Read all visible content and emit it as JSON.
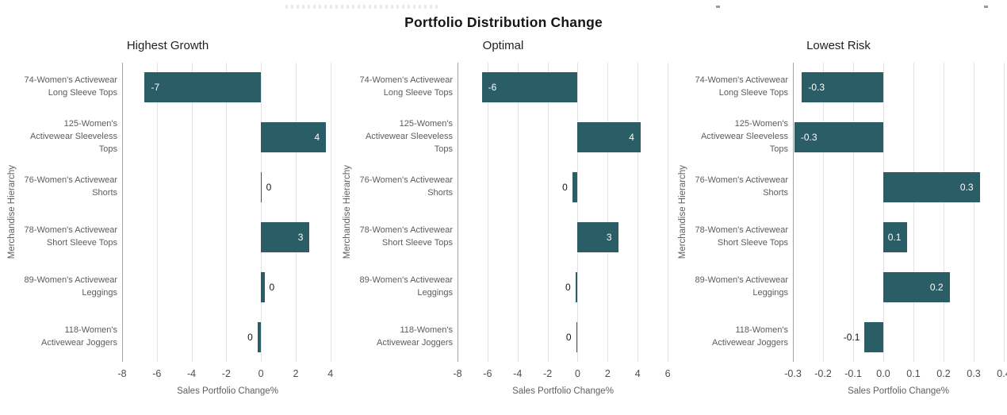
{
  "page": {
    "title": "Portfolio Distribution Change"
  },
  "colors": {
    "bar": "#2A5D65",
    "gridline": "#e2e2e2",
    "axis_line": "#a3a3a3",
    "value_label_inside": "#ffffff",
    "value_label_outside": "#141414",
    "muted_text": "#5c5c5c"
  },
  "chart_data": [
    {
      "type": "bar",
      "orientation": "horizontal",
      "title": "Highest Growth",
      "xlabel": "Sales Portfolio Change%",
      "ylabel": "Merchandise Hierarchy",
      "categories": [
        "74-Women's Activewear Long Sleeve Tops",
        "125-Women's Activewear Sleeveless Tops",
        "76-Women's Activewear Shorts",
        "78-Women's Activewear Short Sleeve Tops",
        "89-Women's Activewear Leggings",
        "118-Women's Activewear Joggers"
      ],
      "values": [
        -6.7,
        3.75,
        0.02,
        2.8,
        0.2,
        -0.2
      ],
      "labels": [
        "-7",
        "4",
        "0",
        "3",
        "0",
        "0"
      ],
      "label_inside": [
        true,
        true,
        false,
        true,
        false,
        false
      ],
      "xlim": [
        -8,
        4.15
      ],
      "ticks": [
        -8,
        -6,
        -4,
        -2,
        0,
        2,
        4
      ],
      "tick_labels": [
        "-8",
        "-6",
        "-4",
        "-2",
        "0",
        "2",
        "4"
      ],
      "grid": true,
      "legend": "none"
    },
    {
      "type": "bar",
      "orientation": "horizontal",
      "title": "Optimal",
      "xlabel": "Sales Portfolio Change%",
      "ylabel": "Merchandise Hierarchy",
      "categories": [
        "74-Women's Activewear Long Sleeve Tops",
        "125-Women's Activewear Sleeveless Tops",
        "76-Women's Activewear Shorts",
        "78-Women's Activewear Short Sleeve Tops",
        "89-Women's Activewear Leggings",
        "118-Women's Activewear Joggers"
      ],
      "values": [
        -6.38,
        4.2,
        -0.35,
        2.7,
        -0.15,
        -0.1
      ],
      "labels": [
        "-6",
        "4",
        "0",
        "3",
        "0",
        "0"
      ],
      "label_inside": [
        true,
        true,
        false,
        true,
        false,
        false
      ],
      "xlim": [
        -8,
        6.05
      ],
      "ticks": [
        -8,
        -6,
        -4,
        -2,
        0,
        2,
        4,
        6
      ],
      "tick_labels": [
        "-8",
        "-6",
        "-4",
        "-2",
        "0",
        "2",
        "4",
        "6"
      ],
      "grid": true,
      "legend": "none"
    },
    {
      "type": "bar",
      "orientation": "horizontal",
      "title": "Lowest Risk",
      "xlabel": "Sales Portfolio Change%",
      "ylabel": "Merchandise Hierarchy",
      "categories": [
        "74-Women's Activewear Long Sleeve Tops",
        "125-Women's Activewear Sleeveless Tops",
        "76-Women's Activewear Shorts",
        "78-Women's Activewear Short Sleeve Tops",
        "89-Women's Activewear Leggings",
        "118-Women's Activewear Joggers"
      ],
      "values": [
        -0.27,
        -0.295,
        0.32,
        0.08,
        0.22,
        -0.062
      ],
      "labels": [
        "-0.3",
        "-0.3",
        "0.3",
        "0.1",
        "0.2",
        "-0.1"
      ],
      "label_inside": [
        true,
        true,
        true,
        true,
        true,
        false
      ],
      "xlim": [
        -0.3,
        0.4
      ],
      "ticks": [
        -0.3,
        -0.2,
        -0.1,
        0,
        0.1,
        0.2,
        0.3,
        0.4
      ],
      "tick_labels": [
        "-0.3",
        "-0.2",
        "-0.1",
        "0.0",
        "0.1",
        "0.2",
        "0.3",
        "0.4"
      ],
      "grid": true,
      "legend": "none"
    }
  ]
}
